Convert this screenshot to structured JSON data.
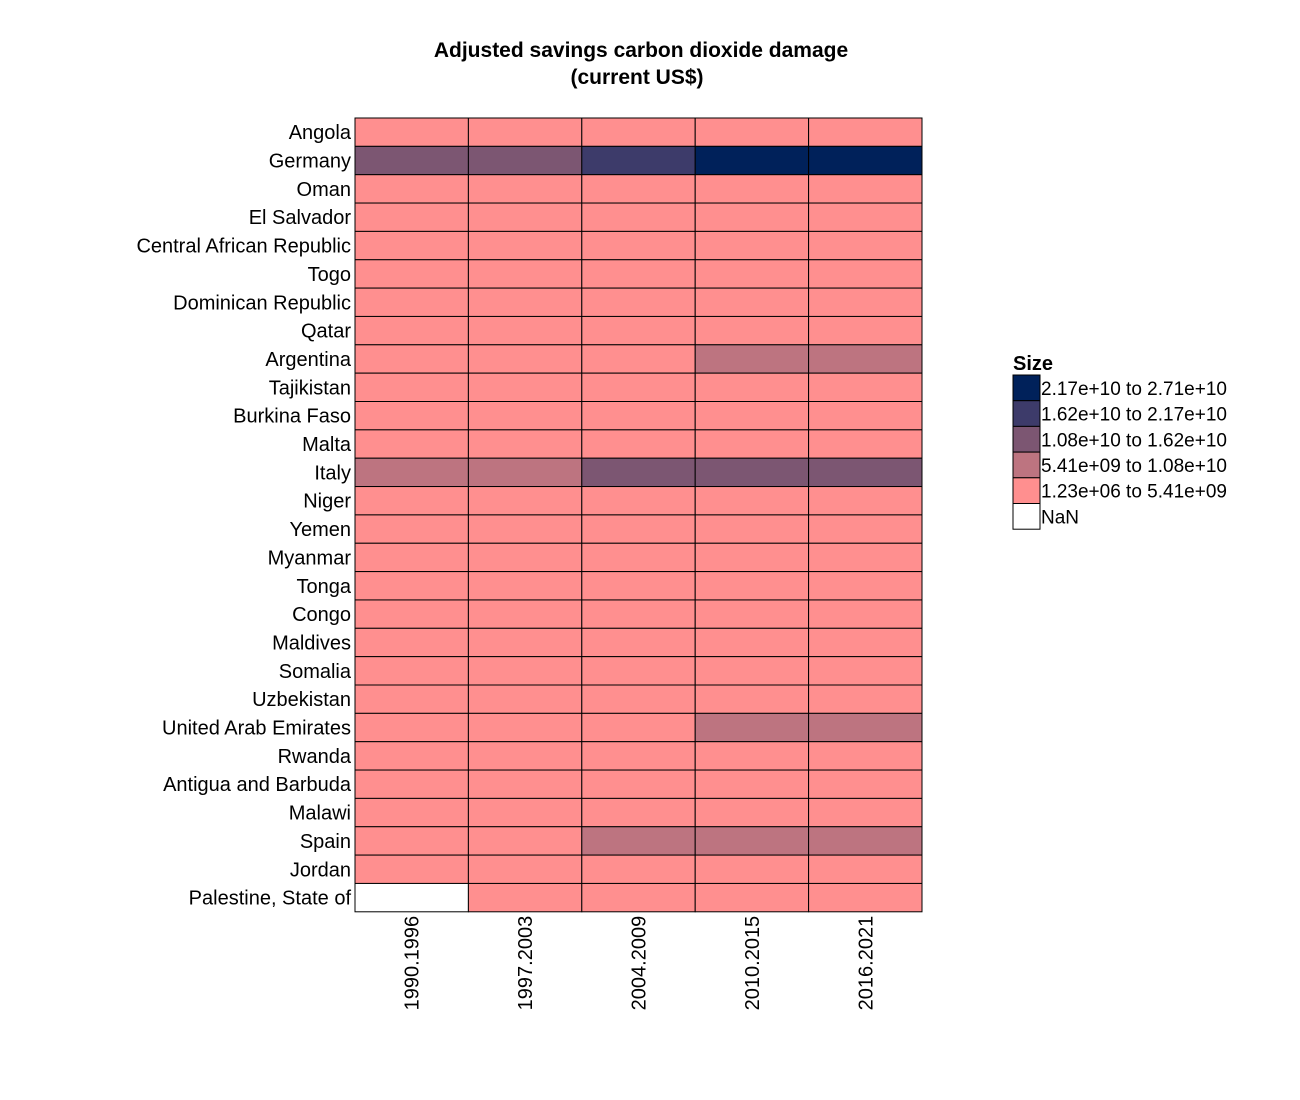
{
  "chart_data": {
    "type": "heatmap",
    "title": "Adjusted savings carbon dioxide damage",
    "subtitle": "(current US$)",
    "columns": [
      "1990.1996",
      "1997.2003",
      "2004.2009",
      "2010.2015",
      "2016.2021"
    ],
    "rows": [
      "Angola",
      "Germany",
      "Oman",
      "El Salvador",
      "Central African Republic",
      "Togo",
      "Dominican Republic",
      "Qatar",
      "Argentina",
      "Tajikistan",
      "Burkina Faso",
      "Malta",
      "Italy",
      "Niger",
      "Yemen",
      "Myanmar",
      "Tonga",
      "Congo",
      "Maldives",
      "Somalia",
      "Uzbekistan",
      "United Arab Emirates",
      "Rwanda",
      "Antigua and Barbuda",
      "Malawi",
      "Spain",
      "Jordan",
      "Palestine, State of"
    ],
    "cell_bins": [
      [
        0,
        0,
        0,
        0,
        0
      ],
      [
        2,
        2,
        3,
        4,
        4
      ],
      [
        0,
        0,
        0,
        0,
        0
      ],
      [
        0,
        0,
        0,
        0,
        0
      ],
      [
        0,
        0,
        0,
        0,
        0
      ],
      [
        0,
        0,
        0,
        0,
        0
      ],
      [
        0,
        0,
        0,
        0,
        0
      ],
      [
        0,
        0,
        0,
        0,
        0
      ],
      [
        0,
        0,
        0,
        1,
        1
      ],
      [
        0,
        0,
        0,
        0,
        0
      ],
      [
        0,
        0,
        0,
        0,
        0
      ],
      [
        0,
        0,
        0,
        0,
        0
      ],
      [
        1,
        1,
        2,
        2,
        2
      ],
      [
        0,
        0,
        0,
        0,
        0
      ],
      [
        0,
        0,
        0,
        0,
        0
      ],
      [
        0,
        0,
        0,
        0,
        0
      ],
      [
        0,
        0,
        0,
        0,
        0
      ],
      [
        0,
        0,
        0,
        0,
        0
      ],
      [
        0,
        0,
        0,
        0,
        0
      ],
      [
        0,
        0,
        0,
        0,
        0
      ],
      [
        0,
        0,
        0,
        0,
        0
      ],
      [
        0,
        0,
        0,
        1,
        1
      ],
      [
        0,
        0,
        0,
        0,
        0
      ],
      [
        0,
        0,
        0,
        0,
        0
      ],
      [
        0,
        0,
        0,
        0,
        0
      ],
      [
        0,
        0,
        1,
        1,
        1
      ],
      [
        0,
        0,
        0,
        0,
        0
      ],
      [
        -1,
        0,
        0,
        0,
        0
      ]
    ],
    "legend": {
      "title": "Size",
      "position": "right",
      "entries": [
        {
          "label": "2.17e+10 to 2.71e+10",
          "color": "#00215a",
          "bin": 4
        },
        {
          "label": "1.62e+10 to 2.17e+10",
          "color": "#3d3b6a",
          "bin": 3
        },
        {
          "label": "1.08e+10 to 1.62e+10",
          "color": "#7c5672",
          "bin": 2
        },
        {
          "label": "5.41e+09 to 1.08e+10",
          "color": "#bd7480",
          "bin": 1
        },
        {
          "label": "1.23e+06 to 5.41e+09",
          "color": "#ff8f8f",
          "bin": 0
        },
        {
          "label": "NaN",
          "color": "#ffffff",
          "bin": -1
        }
      ]
    },
    "grid": false
  }
}
